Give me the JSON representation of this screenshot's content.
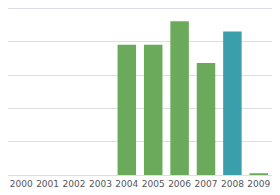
{
  "chart_data": {
    "type": "bar",
    "categories": [
      "2000",
      "2001",
      "2002",
      "2003",
      "2004",
      "2005",
      "2006",
      "2007",
      "2008",
      "2009"
    ],
    "values": [
      0,
      0,
      0,
      0,
      78,
      78,
      92,
      67,
      86,
      1
    ],
    "colors": [
      "#6aaa5a",
      "#6aaa5a",
      "#6aaa5a",
      "#6aaa5a",
      "#6aaa5a",
      "#6aaa5a",
      "#6aaa5a",
      "#6aaa5a",
      "#3a9faa",
      "#6aaa5a"
    ],
    "ylim": [
      0,
      100
    ],
    "yticks": [
      0,
      20,
      40,
      60,
      80,
      100
    ],
    "grid": true,
    "tick_labels": "x"
  }
}
